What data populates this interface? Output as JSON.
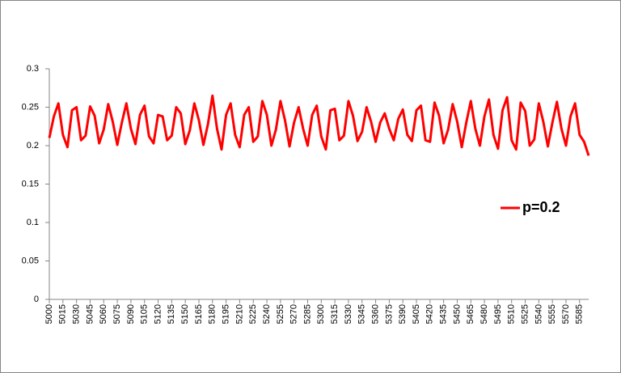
{
  "chart_data": {
    "type": "line",
    "x": [
      5000,
      5005,
      5010,
      5015,
      5020,
      5025,
      5030,
      5035,
      5040,
      5045,
      5050,
      5055,
      5060,
      5065,
      5070,
      5075,
      5080,
      5085,
      5090,
      5095,
      5100,
      5105,
      5110,
      5115,
      5120,
      5125,
      5130,
      5135,
      5140,
      5145,
      5150,
      5155,
      5160,
      5165,
      5170,
      5175,
      5180,
      5185,
      5190,
      5195,
      5200,
      5205,
      5210,
      5215,
      5220,
      5225,
      5230,
      5235,
      5240,
      5245,
      5250,
      5255,
      5260,
      5265,
      5270,
      5275,
      5280,
      5285,
      5290,
      5295,
      5300,
      5305,
      5310,
      5315,
      5320,
      5325,
      5330,
      5335,
      5340,
      5345,
      5350,
      5355,
      5360,
      5365,
      5370,
      5375,
      5380,
      5385,
      5390,
      5395,
      5400,
      5405,
      5410,
      5415,
      5420,
      5425,
      5430,
      5435,
      5440,
      5445,
      5450,
      5455,
      5460,
      5465,
      5470,
      5475,
      5480,
      5485,
      5490,
      5495,
      5500,
      5505,
      5510,
      5515,
      5520,
      5525,
      5530,
      5535,
      5540,
      5545,
      5550,
      5555,
      5560,
      5565,
      5570,
      5575,
      5580,
      5585,
      5590,
      5595
    ],
    "series": [
      {
        "name": "p=0.2",
        "color": "#ff0000",
        "values": [
          0.21,
          0.238,
          0.255,
          0.214,
          0.198,
          0.246,
          0.25,
          0.207,
          0.213,
          0.251,
          0.239,
          0.203,
          0.221,
          0.254,
          0.231,
          0.201,
          0.23,
          0.255,
          0.222,
          0.202,
          0.24,
          0.252,
          0.212,
          0.203,
          0.24,
          0.238,
          0.207,
          0.213,
          0.25,
          0.242,
          0.202,
          0.22,
          0.255,
          0.233,
          0.201,
          0.228,
          0.265,
          0.222,
          0.195,
          0.24,
          0.255,
          0.214,
          0.198,
          0.24,
          0.25,
          0.205,
          0.212,
          0.258,
          0.24,
          0.2,
          0.221,
          0.258,
          0.233,
          0.199,
          0.23,
          0.25,
          0.222,
          0.2,
          0.24,
          0.252,
          0.212,
          0.195,
          0.246,
          0.248,
          0.207,
          0.213,
          0.258,
          0.239,
          0.206,
          0.218,
          0.25,
          0.231,
          0.205,
          0.23,
          0.242,
          0.222,
          0.207,
          0.235,
          0.247,
          0.214,
          0.206,
          0.246,
          0.252,
          0.207,
          0.205,
          0.256,
          0.239,
          0.203,
          0.221,
          0.254,
          0.231,
          0.198,
          0.23,
          0.258,
          0.222,
          0.2,
          0.238,
          0.26,
          0.214,
          0.196,
          0.246,
          0.263,
          0.207,
          0.195,
          0.256,
          0.245,
          0.2,
          0.208,
          0.255,
          0.231,
          0.199,
          0.23,
          0.257,
          0.222,
          0.2,
          0.238,
          0.255,
          0.214,
          0.205,
          0.187
        ]
      }
    ],
    "xlim": [
      5000,
      5595
    ],
    "xticks": [
      5000,
      5015,
      5030,
      5045,
      5060,
      5075,
      5090,
      5105,
      5120,
      5135,
      5150,
      5165,
      5180,
      5195,
      5210,
      5225,
      5240,
      5255,
      5270,
      5285,
      5300,
      5315,
      5330,
      5345,
      5360,
      5375,
      5390,
      5405,
      5420,
      5435,
      5450,
      5465,
      5480,
      5495,
      5510,
      5525,
      5540,
      5555,
      5570,
      5585
    ],
    "ylim": [
      0,
      0.3
    ],
    "yticks": [
      0,
      0.05,
      0.1,
      0.15,
      0.2,
      0.25,
      0.3
    ],
    "grid": false,
    "legend": "right"
  }
}
